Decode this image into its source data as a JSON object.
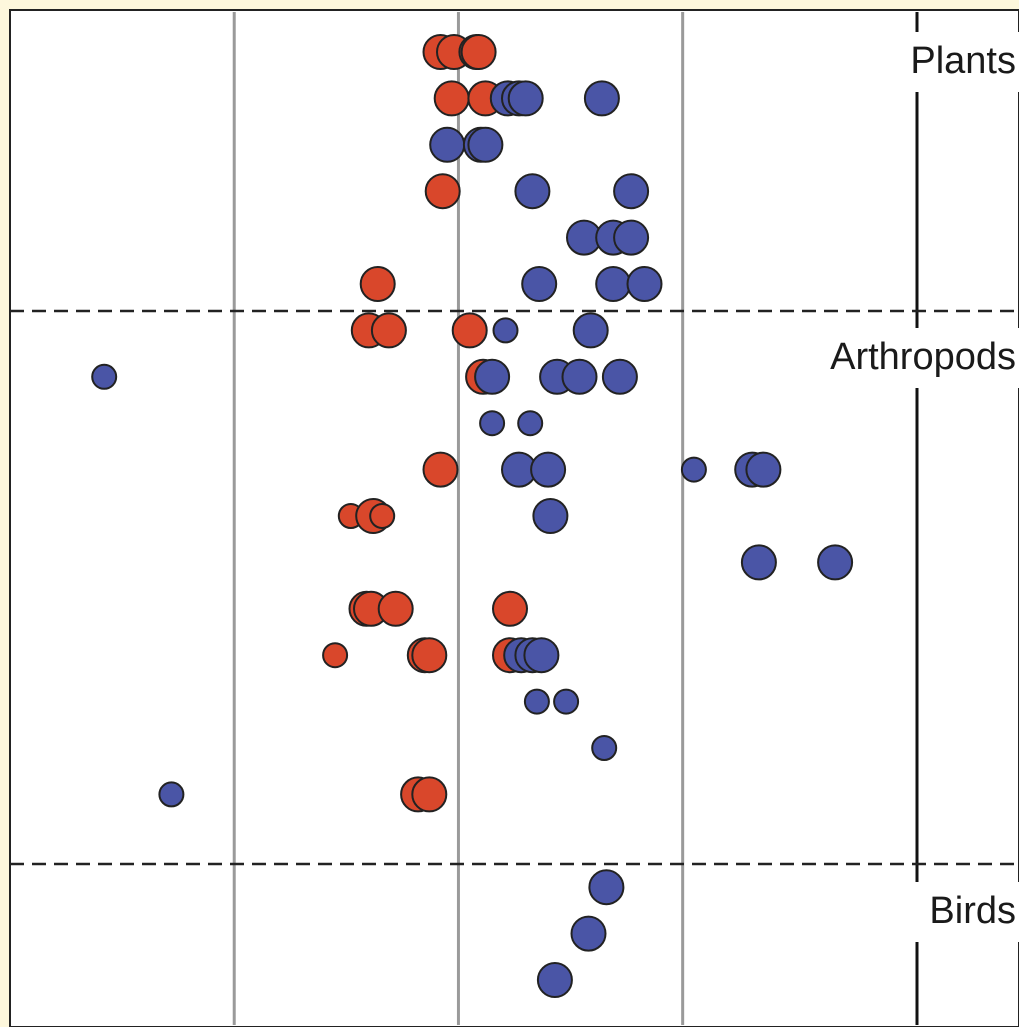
{
  "chart_data": {
    "type": "scatter",
    "title": "",
    "xlabel": "",
    "ylabel": "",
    "x_range": [
      -1.0,
      3.5
    ],
    "grid": "vertical",
    "colors": {
      "red": "#d9472b",
      "blue": "#4a55a6",
      "background": "#fdf7dc"
    },
    "groups": [
      {
        "label": "Plants",
        "rows": [
          1,
          6
        ]
      },
      {
        "label": "Arthropods",
        "rows": [
          7,
          18
        ]
      },
      {
        "label": "Birds",
        "rows": [
          19,
          21
        ]
      }
    ],
    "series": [
      {
        "color": "red",
        "points": [
          {
            "row": 1,
            "x": 0.92,
            "size": "large"
          },
          {
            "row": 1,
            "x": 0.98,
            "size": "large"
          },
          {
            "row": 1,
            "x": 1.08,
            "size": "large"
          },
          {
            "row": 1,
            "x": 1.09,
            "size": "large"
          },
          {
            "row": 2,
            "x": 0.97,
            "size": "large"
          },
          {
            "row": 2,
            "x": 1.12,
            "size": "large"
          },
          {
            "row": 4,
            "x": 0.93,
            "size": "large"
          },
          {
            "row": 6,
            "x": 0.64,
            "size": "large"
          },
          {
            "row": 7,
            "x": 0.6,
            "size": "large"
          },
          {
            "row": 7,
            "x": 0.69,
            "size": "large"
          },
          {
            "row": 7,
            "x": 1.05,
            "size": "large"
          },
          {
            "row": 8,
            "x": 1.11,
            "size": "large"
          },
          {
            "row": 10,
            "x": 0.92,
            "size": "large"
          },
          {
            "row": 11,
            "x": 0.52,
            "size": "small"
          },
          {
            "row": 11,
            "x": 0.62,
            "size": "large"
          },
          {
            "row": 11,
            "x": 0.66,
            "size": "small"
          },
          {
            "row": 13,
            "x": 0.59,
            "size": "large"
          },
          {
            "row": 13,
            "x": 0.61,
            "size": "large"
          },
          {
            "row": 13,
            "x": 0.72,
            "size": "large"
          },
          {
            "row": 13,
            "x": 1.23,
            "size": "large"
          },
          {
            "row": 14,
            "x": 0.45,
            "size": "small"
          },
          {
            "row": 14,
            "x": 0.85,
            "size": "large"
          },
          {
            "row": 14,
            "x": 0.87,
            "size": "large"
          },
          {
            "row": 14,
            "x": 1.23,
            "size": "large"
          },
          {
            "row": 17,
            "x": 0.82,
            "size": "large"
          },
          {
            "row": 17,
            "x": 0.87,
            "size": "large"
          }
        ]
      },
      {
        "color": "blue",
        "points": [
          {
            "row": 2,
            "x": 1.22,
            "size": "large"
          },
          {
            "row": 2,
            "x": 1.27,
            "size": "large"
          },
          {
            "row": 2,
            "x": 1.3,
            "size": "large"
          },
          {
            "row": 2,
            "x": 1.64,
            "size": "large"
          },
          {
            "row": 3,
            "x": 0.95,
            "size": "large"
          },
          {
            "row": 3,
            "x": 1.1,
            "size": "large"
          },
          {
            "row": 3,
            "x": 1.12,
            "size": "large"
          },
          {
            "row": 4,
            "x": 1.33,
            "size": "large"
          },
          {
            "row": 4,
            "x": 1.77,
            "size": "large"
          },
          {
            "row": 5,
            "x": 1.56,
            "size": "large"
          },
          {
            "row": 5,
            "x": 1.69,
            "size": "large"
          },
          {
            "row": 5,
            "x": 1.77,
            "size": "large"
          },
          {
            "row": 6,
            "x": 1.36,
            "size": "large"
          },
          {
            "row": 6,
            "x": 1.69,
            "size": "large"
          },
          {
            "row": 6,
            "x": 1.83,
            "size": "large"
          },
          {
            "row": 7,
            "x": 1.21,
            "size": "small"
          },
          {
            "row": 7,
            "x": 1.59,
            "size": "large"
          },
          {
            "row": 8,
            "x": -0.58,
            "size": "small"
          },
          {
            "row": 8,
            "x": 1.15,
            "size": "large"
          },
          {
            "row": 8,
            "x": 1.44,
            "size": "large"
          },
          {
            "row": 8,
            "x": 1.54,
            "size": "large"
          },
          {
            "row": 8,
            "x": 1.72,
            "size": "large"
          },
          {
            "row": 9,
            "x": 1.15,
            "size": "small"
          },
          {
            "row": 9,
            "x": 1.32,
            "size": "small"
          },
          {
            "row": 10,
            "x": 1.27,
            "size": "large"
          },
          {
            "row": 10,
            "x": 1.4,
            "size": "large"
          },
          {
            "row": 10,
            "x": 2.05,
            "size": "small"
          },
          {
            "row": 10,
            "x": 2.31,
            "size": "large"
          },
          {
            "row": 10,
            "x": 2.36,
            "size": "large"
          },
          {
            "row": 11,
            "x": 1.41,
            "size": "large"
          },
          {
            "row": 12,
            "x": 2.34,
            "size": "large"
          },
          {
            "row": 12,
            "x": 2.68,
            "size": "large"
          },
          {
            "row": 14,
            "x": 1.28,
            "size": "large"
          },
          {
            "row": 14,
            "x": 1.33,
            "size": "large"
          },
          {
            "row": 14,
            "x": 1.37,
            "size": "large"
          },
          {
            "row": 15,
            "x": 1.35,
            "size": "small"
          },
          {
            "row": 15,
            "x": 1.48,
            "size": "small"
          },
          {
            "row": 16,
            "x": 1.65,
            "size": "small"
          },
          {
            "row": 17,
            "x": -0.28,
            "size": "small"
          },
          {
            "row": 19,
            "x": 1.66,
            "size": "large"
          },
          {
            "row": 20,
            "x": 1.58,
            "size": "large"
          },
          {
            "row": 21,
            "x": 1.43,
            "size": "large"
          }
        ]
      }
    ]
  }
}
